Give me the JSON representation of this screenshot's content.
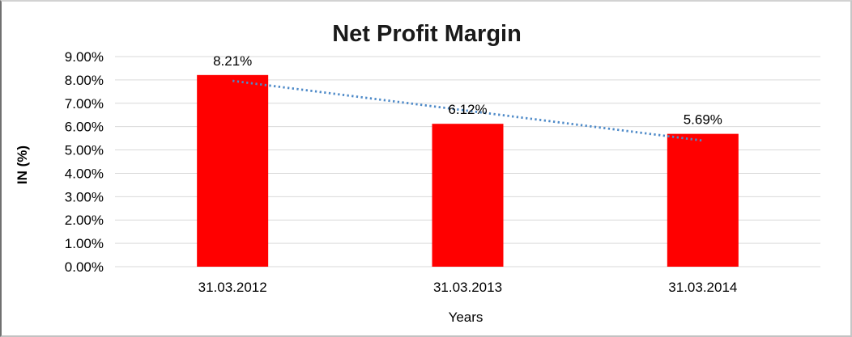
{
  "chart_data": {
    "type": "bar",
    "title": "Net Profit Margin",
    "xlabel": "Years",
    "ylabel": "IN (%)",
    "categories": [
      "31.03.2012",
      "31.03.2013",
      "31.03.2014"
    ],
    "values": [
      8.21,
      6.12,
      5.69
    ],
    "data_labels": [
      "8.21%",
      "6.12%",
      "5.69%"
    ],
    "ylim": [
      0,
      9
    ],
    "ytick_step": 1,
    "ytick_labels": [
      "0.00%",
      "1.00%",
      "2.00%",
      "3.00%",
      "4.00%",
      "5.00%",
      "6.00%",
      "7.00%",
      "8.00%",
      "9.00%"
    ],
    "grid": "horizontal",
    "legend": "none",
    "bar_color": "#FF0000",
    "trendline": {
      "type": "linear",
      "style": "dotted",
      "color": "#4E8AC8",
      "start_value": 7.96,
      "end_value": 5.4
    }
  },
  "colors": {
    "gridline": "#D9D9D9",
    "text": "#000000",
    "background": "#FFFFFF",
    "bar": "#FF0000",
    "trendline": "#4E8AC8"
  }
}
